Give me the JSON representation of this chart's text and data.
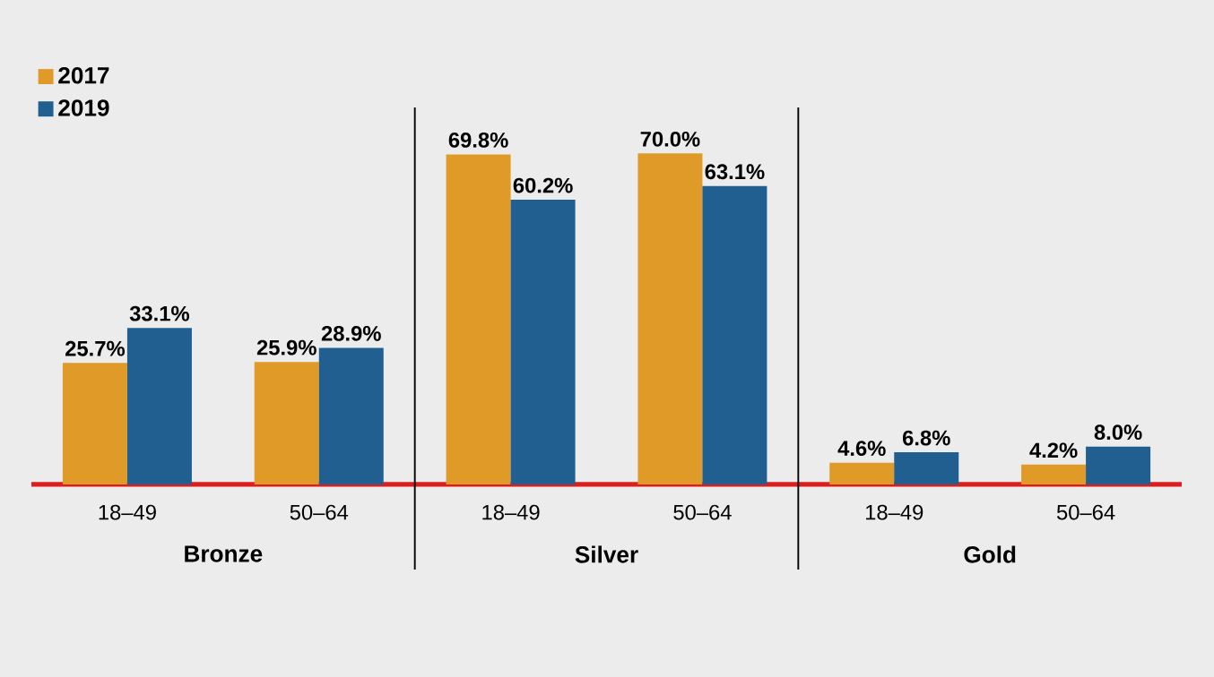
{
  "chart_data": {
    "type": "bar",
    "categories": [
      "18–49",
      "50–64",
      "18–49",
      "50–64",
      "18–49",
      "50–64"
    ],
    "series": [
      {
        "name": "2017",
        "color": "#e09a27",
        "values": [
          25.7,
          25.9,
          69.8,
          70.0,
          4.6,
          4.2
        ],
        "value_labels": [
          "25.7%",
          "25.9%",
          "69.8%",
          "70.0%",
          "4.6%",
          "4.2%"
        ]
      },
      {
        "name": "2019",
        "color": "#215f90",
        "values": [
          33.1,
          28.9,
          60.2,
          63.1,
          6.8,
          8.0
        ],
        "value_labels": [
          "33.1%",
          "28.9%",
          "60.2%",
          "63.1%",
          "6.8%",
          "8.0%"
        ]
      }
    ],
    "annotations": [
      "Bronze",
      "Silver",
      "Gold"
    ],
    "legend": "top left"
  }
}
